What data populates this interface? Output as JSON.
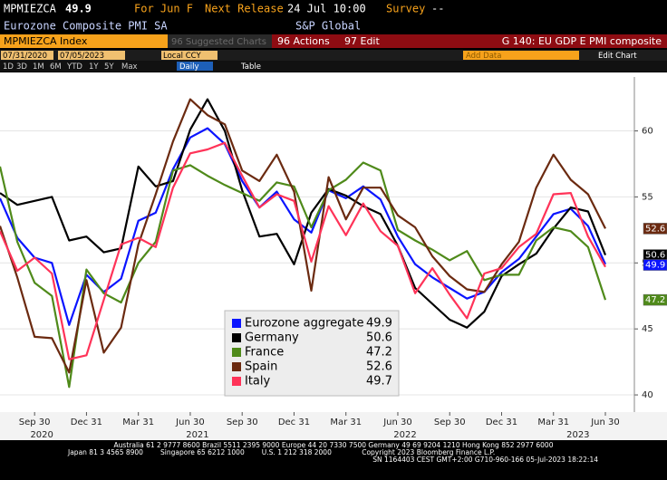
{
  "header": {
    "ticker": "MPMIEZCA",
    "price": "49.9",
    "period": "For Jun F",
    "next_release_label": "Next Release",
    "next_release": "24 Jul 10:00",
    "survey_label": "Survey",
    "survey": "--",
    "description": "Eurozone Composite PMI SA",
    "source": "S&P Global"
  },
  "toolbar": {
    "security": "MPMIEZCA Index",
    "suggested": "96 Suggested Charts",
    "actions": "96 Actions",
    "edit": "97 Edit",
    "page_title": "G 140: EU GDP E PMI composite",
    "start_date": "07/31/2020",
    "end_date": "07/05/2023",
    "currency": "Local CCY",
    "add_data": "Add Data",
    "edit_chart": "Edit Chart",
    "ranges": [
      "1D",
      "3D",
      "1M",
      "6M",
      "YTD",
      "1Y",
      "5Y",
      "Max"
    ],
    "frequency": "Daily",
    "table": "Table"
  },
  "chart_data": {
    "type": "line",
    "categories": [
      null,
      null,
      "Sep 30",
      null,
      null,
      "Dec 31",
      null,
      null,
      "Mar 31",
      null,
      null,
      "Jun 30",
      null,
      null,
      "Sep 30",
      null,
      null,
      "Dec 31",
      null,
      null,
      "Mar 31",
      null,
      null,
      "Jun 30",
      null,
      null,
      "Sep 30",
      null,
      null,
      "Dec 31",
      null,
      null,
      "Mar 31",
      null,
      null,
      "Jun 30"
    ],
    "category_years": [
      null,
      null,
      "2020",
      null,
      null,
      null,
      null,
      null,
      null,
      null,
      null,
      "2021",
      null,
      null,
      null,
      null,
      null,
      null,
      null,
      null,
      null,
      null,
      null,
      "2022",
      null,
      null,
      null,
      null,
      null,
      null,
      null,
      null,
      null,
      "2023",
      null,
      null
    ],
    "series": [
      {
        "name": "Eurozone aggregate",
        "color": "#0a14ff",
        "tag": true,
        "values": [
          54.9,
          51.9,
          50.4,
          50.0,
          45.3,
          49.1,
          47.8,
          48.8,
          53.2,
          53.8,
          57.1,
          59.5,
          60.2,
          59.0,
          56.2,
          54.2,
          55.4,
          53.3,
          52.3,
          55.5,
          54.9,
          55.8,
          54.8,
          52.0,
          49.9,
          48.9,
          48.1,
          47.3,
          47.8,
          49.3,
          50.3,
          52.0,
          53.7,
          54.1,
          52.8,
          49.9
        ]
      },
      {
        "name": "Germany",
        "color": "#000000",
        "tag": true,
        "values": [
          55.3,
          54.4,
          54.7,
          55.0,
          51.7,
          52.0,
          50.8,
          51.1,
          57.3,
          55.8,
          56.2,
          60.1,
          62.4,
          60.0,
          55.5,
          52.0,
          52.2,
          49.9,
          53.8,
          55.6,
          55.1,
          54.3,
          53.7,
          51.3,
          48.1,
          46.9,
          45.7,
          45.1,
          46.3,
          49.0,
          49.9,
          50.7,
          52.6,
          54.2,
          53.9,
          50.6
        ]
      },
      {
        "name": "France",
        "color": "#4f8a1a",
        "tag": true,
        "values": [
          57.3,
          51.6,
          48.5,
          47.5,
          40.6,
          49.5,
          47.7,
          47.0,
          50.0,
          51.6,
          57.0,
          57.4,
          56.6,
          55.9,
          55.3,
          54.7,
          56.1,
          55.8,
          52.7,
          55.5,
          56.3,
          57.6,
          57.0,
          52.5,
          51.7,
          51.0,
          50.2,
          50.9,
          48.7,
          49.1,
          49.1,
          51.7,
          52.7,
          52.4,
          51.2,
          47.2
        ]
      },
      {
        "name": "Spain",
        "color": "#6b2a10",
        "tag": true,
        "values": [
          52.8,
          48.9,
          44.4,
          44.3,
          41.7,
          48.7,
          43.2,
          45.1,
          51.4,
          55.2,
          59.2,
          62.4,
          61.2,
          60.5,
          57.0,
          56.2,
          58.2,
          55.4,
          47.9,
          56.5,
          53.3,
          55.7,
          55.7,
          53.6,
          52.7,
          50.5,
          49.0,
          48.0,
          47.8,
          49.9,
          51.6,
          55.7,
          58.2,
          56.3,
          55.2,
          52.6
        ]
      },
      {
        "name": "Italy",
        "color": "#ff3358",
        "values": [
          52.4,
          49.4,
          50.4,
          49.2,
          42.7,
          43.0,
          47.2,
          51.4,
          51.9,
          51.2,
          55.7,
          58.3,
          58.6,
          59.1,
          56.6,
          54.2,
          55.2,
          54.7,
          50.1,
          54.3,
          52.1,
          54.5,
          52.4,
          51.3,
          47.7,
          49.6,
          47.6,
          45.8,
          49.2,
          49.6,
          51.2,
          52.2,
          55.2,
          55.3,
          52.0,
          49.7
        ]
      }
    ],
    "ylim": [
      38.7,
      63.4
    ],
    "yticks": [
      40,
      45,
      50,
      55,
      60
    ],
    "grid": true,
    "legend": "bottom-center"
  },
  "footer": {
    "line1": "Australia 61 2 9777 8600 Brazil 5511 2395 9000 Europe 44 20 7330 7500 Germany 49 69 9204 1210 Hong Kong 852 2977 6000",
    "line2": "Japan 81 3 4565 8900        Singapore 65 6212 1000        U.S. 1 212 318 2000              Copyright 2023 Bloomberg Finance L.P.",
    "line3": "SN 1164403 CEST  GMT+2:00 G710-960-166 05-Jul-2023 18:22:14"
  }
}
